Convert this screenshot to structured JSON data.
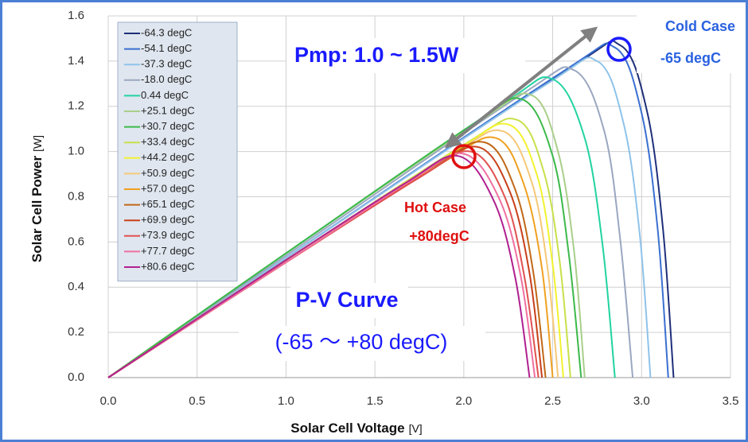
{
  "chart_data": {
    "type": "line",
    "xlabel": "Solar Cell Voltage",
    "xunit": "[V]",
    "ylabel": "Solar Cell Power",
    "yunit": "[W]",
    "xlim": [
      0,
      3.5
    ],
    "ylim": [
      0,
      1.6
    ],
    "xticks": [
      {
        "value": 0,
        "label": "0.0"
      },
      0.5,
      {
        "value": 1,
        "label": "1.0"
      },
      1.5,
      {
        "value": 2,
        "label": "2.0"
      },
      2.5,
      {
        "value": 3,
        "label": "3.0"
      },
      3.5
    ],
    "yticks": [
      {
        "value": 0,
        "label": "0.0"
      },
      0.2,
      0.4,
      0.6,
      0.8,
      {
        "value": 1,
        "label": "1.0"
      },
      1.2,
      1.4,
      1.6
    ],
    "grid": true,
    "legend": "top-left",
    "annotations": {
      "pmp": "Pmp: 1.0 ~ 1.5W",
      "cold_title": "Cold Case",
      "cold_temp": "-65 degC",
      "hot_title": "Hot Case",
      "hot_temp": "+80degC",
      "curve_title": "P-V Curve",
      "curve_range": "(-65 〜 +80 degC)"
    },
    "series": [
      {
        "name": "-64.3 degC",
        "color": "#1f2f7a",
        "x": [
          0,
          1,
          2.58,
          2.88,
          3.03,
          3.12,
          3.18
        ],
        "values": [
          0,
          0.53,
          1.36,
          1.47,
          1.18,
          0.66,
          0
        ]
      },
      {
        "name": "-54.1 degC",
        "color": "#3a6fd0",
        "x": [
          0,
          1,
          2.55,
          2.85,
          3.0,
          3.09,
          3.15
        ],
        "values": [
          0,
          0.53,
          1.35,
          1.46,
          1.17,
          0.66,
          0
        ]
      },
      {
        "name": "-37.3 degC",
        "color": "#8fc3ea",
        "x": [
          0,
          1,
          2.45,
          2.75,
          2.9,
          2.99,
          3.05
        ],
        "values": [
          0,
          0.53,
          1.29,
          1.4,
          1.12,
          0.63,
          0
        ]
      },
      {
        "name": "-18.0 degC",
        "color": "#9aa7c0",
        "x": [
          0,
          1,
          2.32,
          2.62,
          2.79,
          2.88,
          2.95
        ],
        "values": [
          0,
          0.54,
          1.25,
          1.36,
          1.09,
          0.61,
          0
        ]
      },
      {
        "name": "0.44 degC",
        "color": "#22d3a0",
        "x": [
          0,
          1,
          2.2,
          2.5,
          2.68,
          2.78,
          2.85
        ],
        "values": [
          0,
          0.55,
          1.2,
          1.32,
          1.06,
          0.59,
          0
        ]
      },
      {
        "name": "+25.1 degC",
        "color": "#a9cf8a",
        "x": [
          0,
          1,
          2.08,
          2.38,
          2.53,
          2.62,
          2.68
        ],
        "values": [
          0,
          0.55,
          1.13,
          1.25,
          1.0,
          0.56,
          0
        ]
      },
      {
        "name": "+30.7 degC",
        "color": "#3cb94a",
        "x": [
          0,
          1,
          2.03,
          2.33,
          2.5,
          2.59,
          2.66
        ],
        "values": [
          0,
          0.55,
          1.11,
          1.23,
          0.98,
          0.55,
          0
        ]
      },
      {
        "name": "+33.4 degC",
        "color": "#c8e04a",
        "x": [
          0,
          1,
          2.0,
          2.3,
          2.45,
          2.54,
          2.6
        ],
        "values": [
          0,
          0.52,
          1.03,
          1.14,
          0.91,
          0.51,
          0
        ]
      },
      {
        "name": "+44.2 degC",
        "color": "#f2f230",
        "x": [
          0,
          1,
          1.95,
          2.25,
          2.41,
          2.5,
          2.56
        ],
        "values": [
          0,
          0.52,
          1.0,
          1.12,
          0.9,
          0.5,
          0
        ]
      },
      {
        "name": "+50.9 degC",
        "color": "#f5c878",
        "x": [
          0,
          1,
          1.92,
          2.22,
          2.38,
          2.47,
          2.53
        ],
        "values": [
          0,
          0.51,
          0.98,
          1.09,
          0.87,
          0.49,
          0
        ]
      },
      {
        "name": "+57.0 degC",
        "color": "#f0a020",
        "x": [
          0,
          1,
          1.88,
          2.18,
          2.34,
          2.44,
          2.5
        ],
        "values": [
          0,
          0.51,
          0.95,
          1.06,
          0.85,
          0.48,
          0
        ]
      },
      {
        "name": "+65.1 degC",
        "color": "#c06818",
        "x": [
          0,
          1,
          1.82,
          2.12,
          2.29,
          2.39,
          2.46
        ],
        "values": [
          0,
          0.51,
          0.93,
          1.04,
          0.83,
          0.47,
          0
        ]
      },
      {
        "name": "+69.9 degC",
        "color": "#c8401a",
        "x": [
          0,
          1,
          1.78,
          2.08,
          2.26,
          2.37,
          2.44
        ],
        "values": [
          0,
          0.51,
          0.9,
          1.02,
          0.82,
          0.46,
          0
        ]
      },
      {
        "name": "+73.9 degC",
        "color": "#e05050",
        "x": [
          0,
          1,
          1.74,
          2.04,
          2.23,
          2.34,
          2.42
        ],
        "values": [
          0,
          0.51,
          0.88,
          1.0,
          0.8,
          0.45,
          0
        ]
      },
      {
        "name": "+77.7 degC",
        "color": "#f070a0",
        "x": [
          0,
          1,
          1.7,
          2.0,
          2.2,
          2.32,
          2.4
        ],
        "values": [
          0,
          0.51,
          0.87,
          0.99,
          0.79,
          0.45,
          0
        ]
      },
      {
        "name": "+80.6 degC",
        "color": "#b02090",
        "x": [
          0,
          1,
          1.67,
          1.97,
          2.17,
          2.29,
          2.37
        ],
        "values": [
          0,
          0.52,
          0.86,
          0.98,
          0.78,
          0.44,
          0
        ]
      }
    ]
  }
}
